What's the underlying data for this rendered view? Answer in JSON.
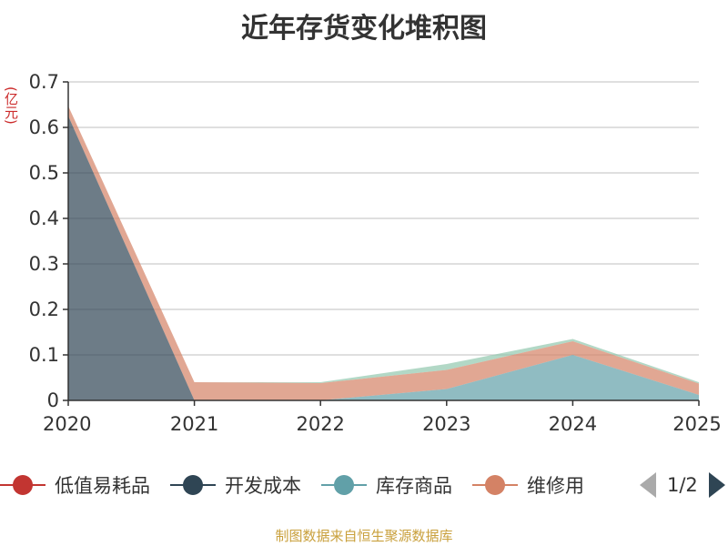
{
  "title": "近年存货变化堆积图",
  "unit": "(亿元)",
  "source": "制图数据来自恒生聚源数据库",
  "pager": {
    "text": "1/2"
  },
  "chart_data": {
    "type": "area",
    "stacked": true,
    "x": [
      "2020",
      "2021",
      "2022",
      "2023",
      "2024",
      "2025"
    ],
    "ylim": [
      0,
      0.7
    ],
    "yticks": [
      0,
      0.1,
      0.2,
      0.3,
      0.4,
      0.5,
      0.6,
      0.7
    ],
    "ytick_labels": [
      "0",
      "0.1",
      "0.2",
      "0.3",
      "0.4",
      "0.5",
      "0.6",
      "0.7"
    ],
    "grid": true,
    "legend_position": "bottom",
    "series": [
      {
        "name": "低值易耗品",
        "color": "#c23531",
        "values": [
          0,
          0,
          0,
          0,
          0,
          0
        ]
      },
      {
        "name": "开发成本",
        "color": "#2f4554",
        "values": [
          0.625,
          0,
          0,
          0,
          0,
          0
        ]
      },
      {
        "name": "库存商品",
        "color": "#61a0a8",
        "values": [
          0,
          0,
          0,
          0.025,
          0.1,
          0.012
        ]
      },
      {
        "name": "维修用",
        "color": "#d48265",
        "values": [
          0.022,
          0.04,
          0.038,
          0.042,
          0.03,
          0.025
        ]
      },
      {
        "name": "",
        "color": "#91c7ae",
        "values": [
          0,
          0,
          0.002,
          0.013,
          0.005,
          0.003
        ]
      }
    ]
  }
}
